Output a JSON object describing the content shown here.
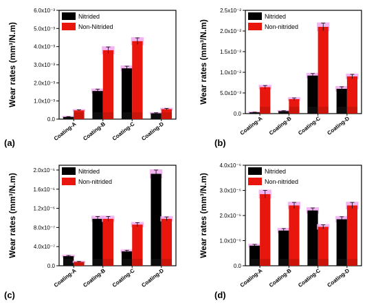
{
  "colors": {
    "nitrided": "#000000",
    "non_nitrided": "#e8160c",
    "error_halo": "#f0a8ee"
  },
  "chart_data": [
    {
      "panel": "(a)",
      "type": "bar",
      "ylabel": "Wear rates (mm³/N.m)",
      "ylim": [
        0,
        0.006
      ],
      "tick_values": [
        0,
        0.001,
        0.002,
        0.003,
        0.004,
        0.005,
        0.006
      ],
      "tick_labels": [
        "0.0",
        "1.0x10⁻³",
        "2.0x10⁻³",
        "3.0x10⁻³",
        "4.0x10⁻³",
        "5.0x10⁻³",
        "6.0x10⁻³"
      ],
      "categories": [
        "Coating-A",
        "Coating-B",
        "Coating-C",
        "Coating-D"
      ],
      "legend_position": "top-left",
      "series": [
        {
          "name": "Nitrided",
          "values": [
            0.00012,
            0.00155,
            0.0028,
            0.00032
          ],
          "errors": [
            2e-05,
            0.0001,
            0.00012,
            3e-05
          ]
        },
        {
          "name": "Non-Nitrided",
          "values": [
            0.00048,
            0.0038,
            0.0043,
            0.00055
          ],
          "errors": [
            3e-05,
            0.00018,
            0.00018,
            4e-05
          ]
        }
      ]
    },
    {
      "panel": "(b)",
      "type": "bar",
      "ylabel": "Wear rates (mm³/N.m)",
      "ylim": [
        0,
        0.025
      ],
      "tick_values": [
        0,
        0.005,
        0.01,
        0.015,
        0.02,
        0.025
      ],
      "tick_labels": [
        "0.0",
        "5.0x10⁻³",
        "1.0x10⁻²",
        "1.5x10⁻²",
        "2.0x10⁻²",
        "2.5x10⁻²"
      ],
      "categories": [
        "Coating-A",
        "Coating-B",
        "Coating-C",
        "Coating-D"
      ],
      "legend_position": "top-left",
      "series": [
        {
          "name": "Nitrided",
          "values": [
            0.0003,
            0.0006,
            0.0092,
            0.006
          ],
          "errors": [
            5e-05,
            0.0001,
            0.0005,
            0.0005
          ]
        },
        {
          "name": "Non-nitrided",
          "values": [
            0.0064,
            0.0035,
            0.021,
            0.009
          ],
          "errors": [
            0.0004,
            0.0003,
            0.0009,
            0.0005
          ]
        }
      ]
    },
    {
      "panel": "(c)",
      "type": "bar",
      "ylabel": "Wear rates (mm³/N.m)",
      "ylim": [
        0,
        2.1e-06
      ],
      "tick_values": [
        0,
        4e-07,
        8e-07,
        1.2e-06,
        1.6e-06,
        2e-06
      ],
      "tick_labels": [
        "0.0",
        "4.0x10⁻⁷",
        "8.0x10⁻⁷",
        "1.2x10⁻⁶",
        "1.6x10⁻⁶",
        "2.0x10⁻⁶"
      ],
      "categories": [
        "Coating-A",
        "Coating-B",
        "Coating-C",
        "Coating-D"
      ],
      "legend_position": "top-left",
      "series": [
        {
          "name": "Nitrided",
          "values": [
            2e-07,
            9.8e-07,
            3e-07,
            1.92e-06
          ],
          "errors": [
            1.5e-08,
            5e-08,
            2.5e-08,
            8e-08
          ]
        },
        {
          "name": "Non-nitrided",
          "values": [
            8e-08,
            9.8e-07,
            8.6e-07,
            9.8e-07
          ],
          "errors": [
            1e-08,
            5e-08,
            4e-08,
            4e-08
          ]
        }
      ]
    },
    {
      "panel": "(d)",
      "type": "bar",
      "ylabel": "Wear rates (mm³/N.m)",
      "ylim": [
        0,
        4e-06
      ],
      "tick_values": [
        0,
        1e-06,
        2e-06,
        3e-06,
        4e-06
      ],
      "tick_labels": [
        "0.0",
        "1.0x10⁻⁶",
        "2.0x10⁻⁶",
        "3.0x10⁻⁶",
        "4.0x10⁻⁶"
      ],
      "categories": [
        "Coating-A",
        "Coating-B",
        "Coating-C",
        "Coating-D"
      ],
      "legend_position": "top-left",
      "series": [
        {
          "name": "Nitrided",
          "values": [
            8e-07,
            1.4e-06,
            2.2e-06,
            1.85e-06
          ],
          "errors": [
            5e-08,
            8e-08,
            1e-07,
            1e-07
          ]
        },
        {
          "name": "Non-nitrided",
          "values": [
            2.85e-06,
            2.4e-06,
            1.55e-06,
            2.4e-06
          ],
          "errors": [
            1.5e-07,
            1.2e-07,
            8e-08,
            1.2e-07
          ]
        }
      ]
    }
  ]
}
